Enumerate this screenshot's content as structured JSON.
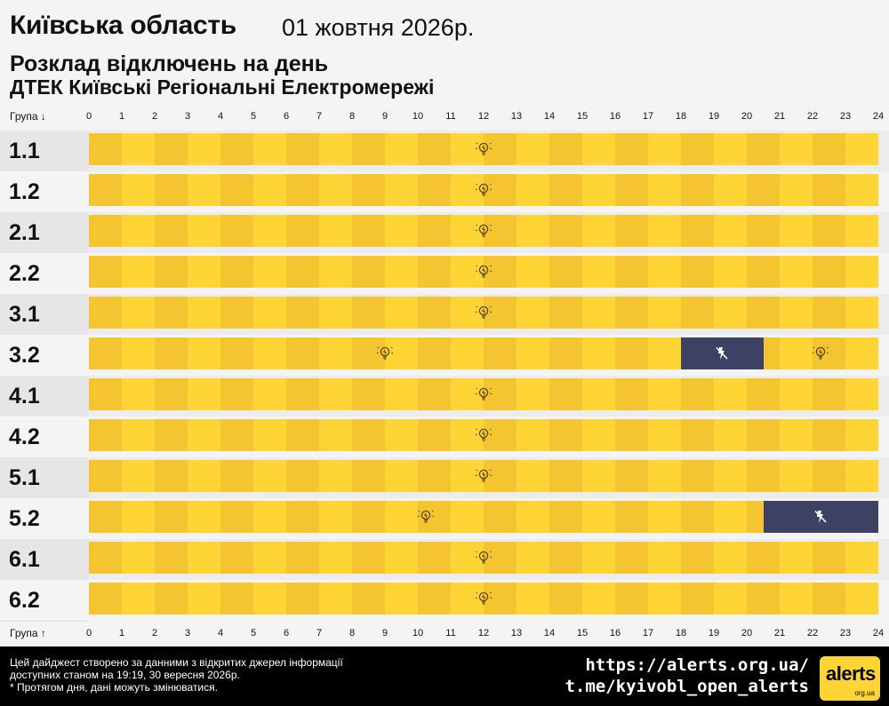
{
  "header": {
    "region": "Київська область",
    "date": "01 жовтня 2026р.",
    "subtitle": "Розклад відключень на день",
    "company": "ДТЕК Київські Регіональні Електромережі"
  },
  "axis": {
    "top_label": "Група ↓",
    "bottom_label": "Група ↑"
  },
  "icons": {
    "on": "lightbulb-icon",
    "off": "no-power-icon"
  },
  "colors": {
    "power_on_a": "#f5c531",
    "power_on_b": "#fed535",
    "power_off": "#3d4163",
    "bulb_stroke": "#5a4a00",
    "off_icon": "#ffffff"
  },
  "chart_data": {
    "type": "table",
    "x_unit": "hour",
    "xlim": [
      0,
      24
    ],
    "x_ticks": [
      0,
      1,
      2,
      3,
      4,
      5,
      6,
      7,
      8,
      9,
      10,
      11,
      12,
      13,
      14,
      15,
      16,
      17,
      18,
      19,
      20,
      21,
      22,
      23,
      24
    ],
    "rows": [
      {
        "group": "1.1",
        "outages": []
      },
      {
        "group": "1.2",
        "outages": []
      },
      {
        "group": "2.1",
        "outages": []
      },
      {
        "group": "2.2",
        "outages": []
      },
      {
        "group": "3.1",
        "outages": []
      },
      {
        "group": "3.2",
        "outages": [
          [
            18,
            20.5
          ]
        ]
      },
      {
        "group": "4.1",
        "outages": []
      },
      {
        "group": "4.2",
        "outages": []
      },
      {
        "group": "5.1",
        "outages": []
      },
      {
        "group": "5.2",
        "outages": [
          [
            20.5,
            24
          ]
        ]
      },
      {
        "group": "6.1",
        "outages": []
      },
      {
        "group": "6.2",
        "outages": []
      }
    ]
  },
  "footer": {
    "note_line1": "Цей дайджест створено за данними з відкритих джерел інформації",
    "note_line2": "доступних станом на 19:19, 30 вересня 2026р.",
    "note_line3": "* Протягом дня, дані можуть змінюватися.",
    "site": "https://alerts.org.ua/",
    "telegram": "t.me/kyivobl_open_alerts",
    "logo_main": "alerts",
    "logo_sub": "org.ua"
  }
}
